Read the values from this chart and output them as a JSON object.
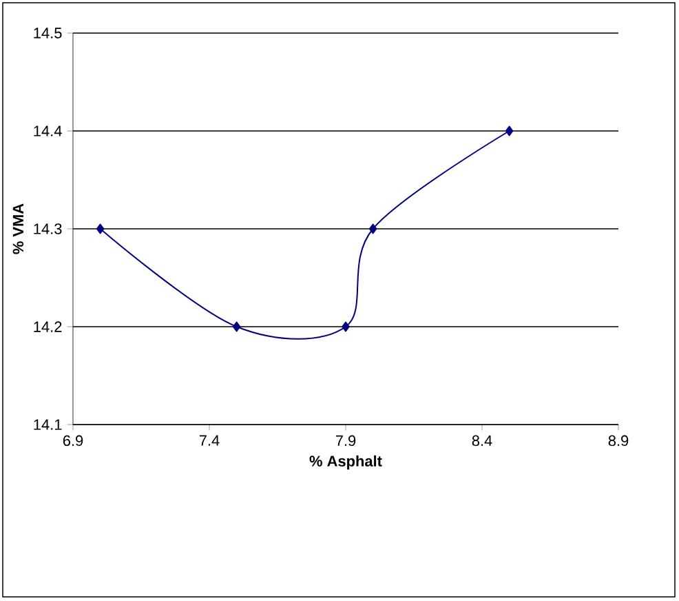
{
  "chart_data": {
    "type": "line",
    "xlabel": "% Asphalt",
    "ylabel": "% VMA",
    "x": [
      7.0,
      7.5,
      7.9,
      8.0,
      8.5
    ],
    "series": [
      {
        "color": "#000080",
        "values": [
          14.3,
          14.2,
          14.2,
          14.3,
          14.4
        ]
      }
    ],
    "xlim": [
      6.9,
      8.9
    ],
    "xticks": [
      {
        "value": 6.9,
        "label": "6.9"
      },
      {
        "value": 7.4,
        "label": "7.4"
      },
      {
        "value": 7.9,
        "label": "7.9"
      },
      {
        "value": 8.4,
        "label": "8.4"
      },
      {
        "value": 8.9,
        "label": "8.9"
      }
    ],
    "ylim": [
      14.1,
      14.5
    ],
    "yticks": [
      {
        "value": 14.1,
        "label": "14.1"
      },
      {
        "value": 14.2,
        "label": "14.2"
      },
      {
        "value": 14.3,
        "label": "14.3"
      },
      {
        "value": 14.4,
        "label": "14.4"
      },
      {
        "value": 14.5,
        "label": "14.5"
      }
    ],
    "grid": "y",
    "marker": "diamond",
    "line_style": "solid"
  }
}
